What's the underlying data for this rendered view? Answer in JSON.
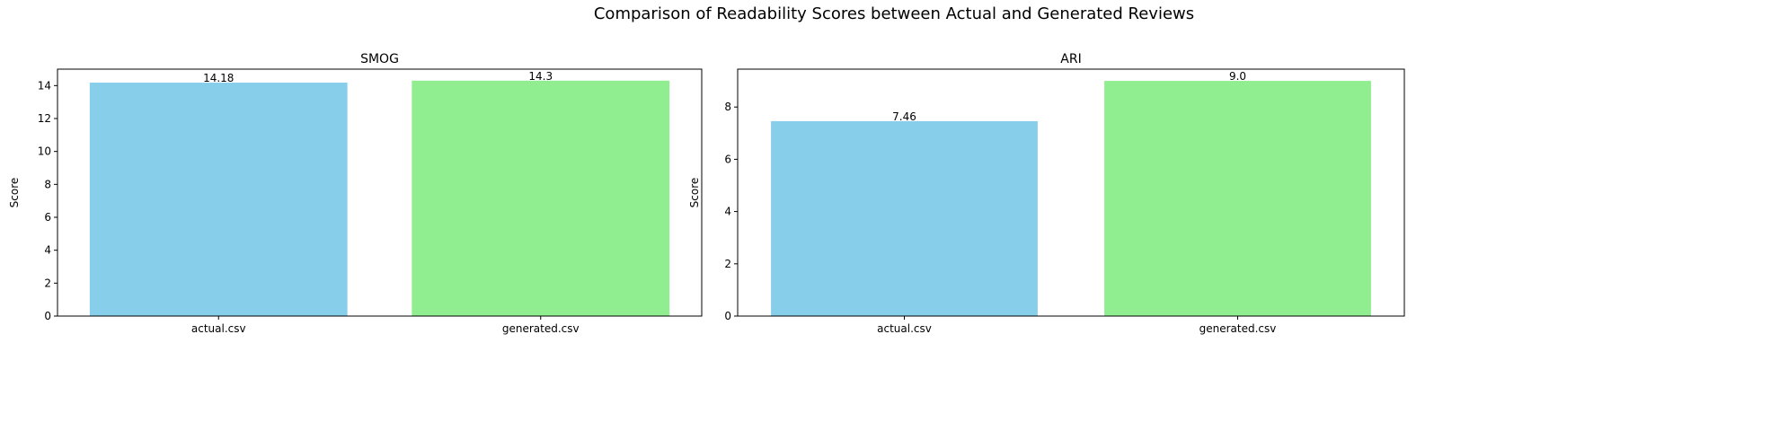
{
  "suptitle": "Comparison of Readability Scores between Actual and Generated Reviews",
  "chart_data": [
    {
      "type": "bar",
      "title": "SMOG",
      "xlabel": "",
      "ylabel": "Score",
      "categories": [
        "actual.csv",
        "generated.csv"
      ],
      "values": [
        14.18,
        14.3
      ],
      "value_labels": [
        "14.18",
        "14.3"
      ],
      "ylim": [
        0,
        15
      ],
      "yticks": [
        0,
        2,
        4,
        6,
        8,
        10,
        12,
        14
      ],
      "colors": [
        "#87ceeb",
        "#90ee90"
      ],
      "grid": false,
      "legend": "none"
    },
    {
      "type": "bar",
      "title": "ARI",
      "xlabel": "",
      "ylabel": "Score",
      "categories": [
        "actual.csv",
        "generated.csv"
      ],
      "values": [
        7.46,
        9.0
      ],
      "value_labels": [
        "7.46",
        "9.0"
      ],
      "ylim": [
        0,
        9.45
      ],
      "yticks": [
        0,
        2,
        4,
        6,
        8
      ],
      "colors": [
        "#87ceeb",
        "#90ee90"
      ],
      "grid": false,
      "legend": "none"
    }
  ]
}
